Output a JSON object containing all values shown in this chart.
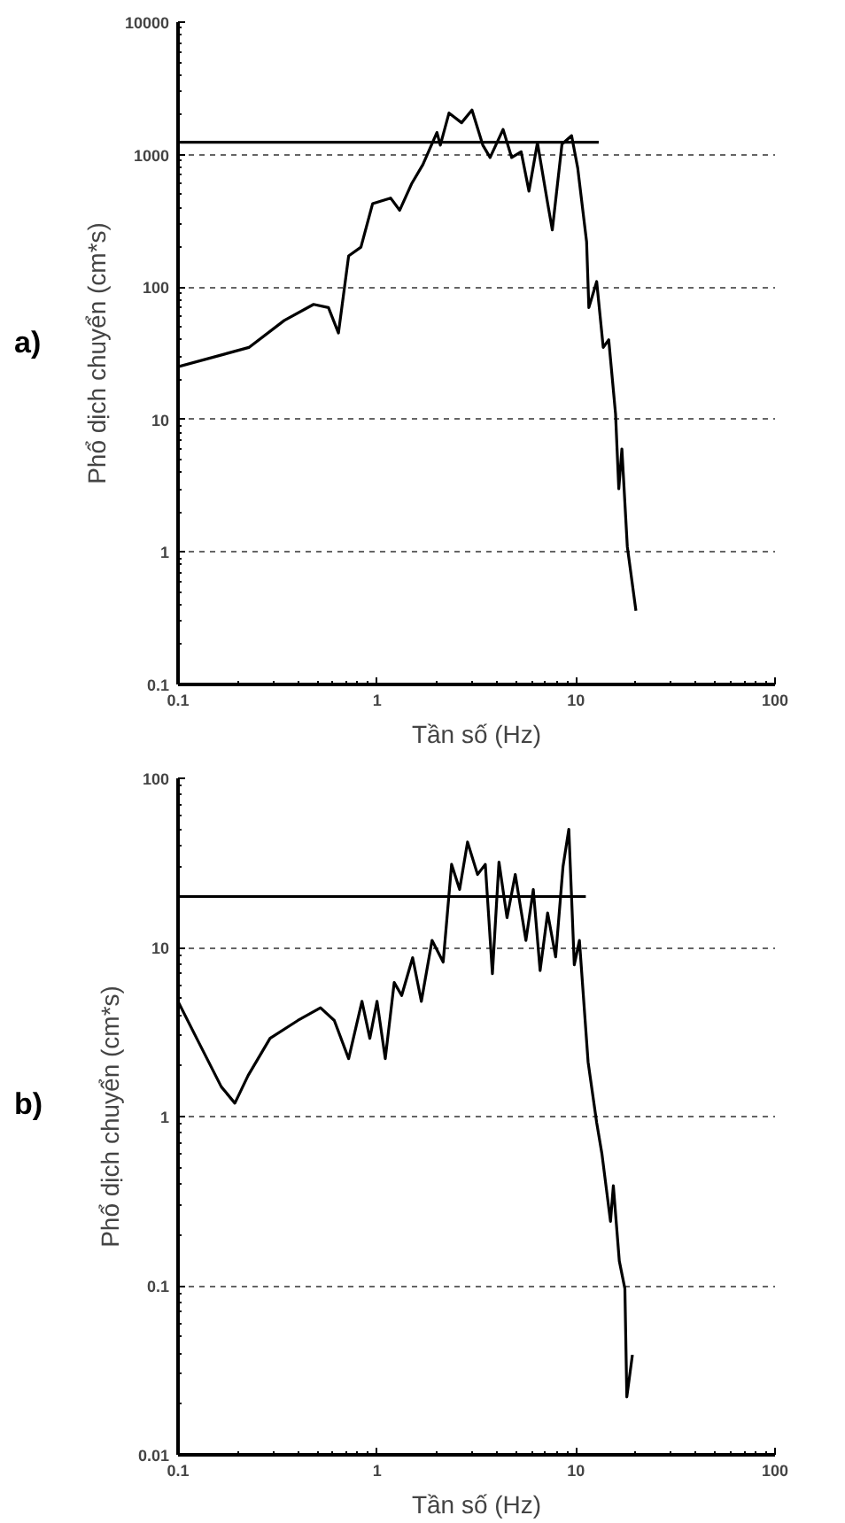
{
  "chart_data": [
    {
      "type": "line",
      "xlabel": "Tần số (Hz)",
      "ylabel": "Phổ dịch chuyển (cm*s)",
      "log": "xy",
      "grid": "y",
      "line_style": "solid",
      "xlim": [
        0.1,
        100
      ],
      "ylim": [
        0.1,
        10000
      ],
      "xticks": [
        0.1,
        1,
        10,
        100
      ],
      "yticks": [
        0.1,
        1,
        10,
        100,
        1000,
        10000
      ],
      "annotations": [
        "a)"
      ],
      "series": [
        {
          "color": "#000000",
          "x": [
            0.1,
            0.227,
            0.342,
            0.48,
            0.57,
            0.64,
            0.72,
            0.83,
            0.95,
            1.17,
            1.3,
            1.49,
            1.7,
            2.0,
            2.08,
            2.3,
            2.66,
            3.0,
            3.4,
            3.7,
            4.3,
            4.75,
            5.3,
            5.8,
            6.4,
            7.2,
            7.6,
            8.5,
            9.5,
            10.2,
            11.3,
            11.6,
            12.7,
            13.7,
            14.6,
            15.8,
            16.4,
            17,
            18.1,
            20
          ],
          "values": [
            25,
            35,
            56,
            74,
            70,
            45,
            172,
            200,
            426,
            470,
            380,
            600,
            840,
            1470,
            1180,
            2060,
            1740,
            2170,
            1180,
            950,
            1550,
            950,
            1050,
            530,
            1230,
            430,
            270,
            1200,
            1390,
            790,
            220,
            70,
            110,
            35,
            40,
            11,
            3,
            6,
            1.1,
            0.36
          ]
        },
        {
          "type": "line",
          "color": "#000000",
          "x": [
            0.1,
            13
          ],
          "values": [
            1240,
            1240
          ]
        }
      ]
    },
    {
      "type": "line",
      "xlabel": "Tần số (Hz)",
      "ylabel": "Phổ dịch chuyển (cm*s)",
      "log": "xy",
      "grid": "y",
      "line_style": "solid",
      "xlim": [
        0.1,
        100
      ],
      "ylim": [
        0.01,
        100
      ],
      "xticks": [
        0.1,
        1,
        10,
        100
      ],
      "yticks": [
        0.01,
        0.1,
        1,
        10,
        100
      ],
      "annotations": [
        "b)"
      ],
      "series": [
        {
          "color": "#000000",
          "x": [
            0.1,
            0.128,
            0.165,
            0.193,
            0.225,
            0.29,
            0.4,
            0.52,
            0.61,
            0.72,
            0.84,
            0.92,
            1.0,
            1.1,
            1.22,
            1.33,
            1.51,
            1.67,
            1.89,
            2.15,
            2.37,
            2.6,
            2.85,
            3.2,
            3.5,
            3.8,
            4.1,
            4.5,
            4.95,
            5.6,
            6.1,
            6.6,
            7.2,
            7.9,
            8.6,
            9.2,
            9.8,
            10.4,
            11.5,
            12.7,
            13.5,
            14.9,
            15.4,
            16.5,
            17.6,
            18.0,
            19.2
          ],
          "values": [
            4.8,
            2.7,
            1.5,
            1.2,
            1.75,
            2.9,
            3.7,
            4.4,
            3.7,
            2.2,
            4.8,
            2.9,
            4.8,
            2.2,
            6.2,
            5.2,
            8.7,
            4.8,
            11,
            8.2,
            31,
            22,
            42,
            27,
            31,
            7,
            32,
            15,
            27,
            11,
            22,
            7.3,
            16,
            8.8,
            30,
            50,
            7.9,
            11,
            2.1,
            0.92,
            0.6,
            0.24,
            0.39,
            0.14,
            0.096,
            0.022,
            0.039
          ]
        },
        {
          "type": "line",
          "color": "#000000",
          "x": [
            0.1,
            11.2
          ],
          "values": [
            20,
            20
          ]
        }
      ]
    }
  ]
}
